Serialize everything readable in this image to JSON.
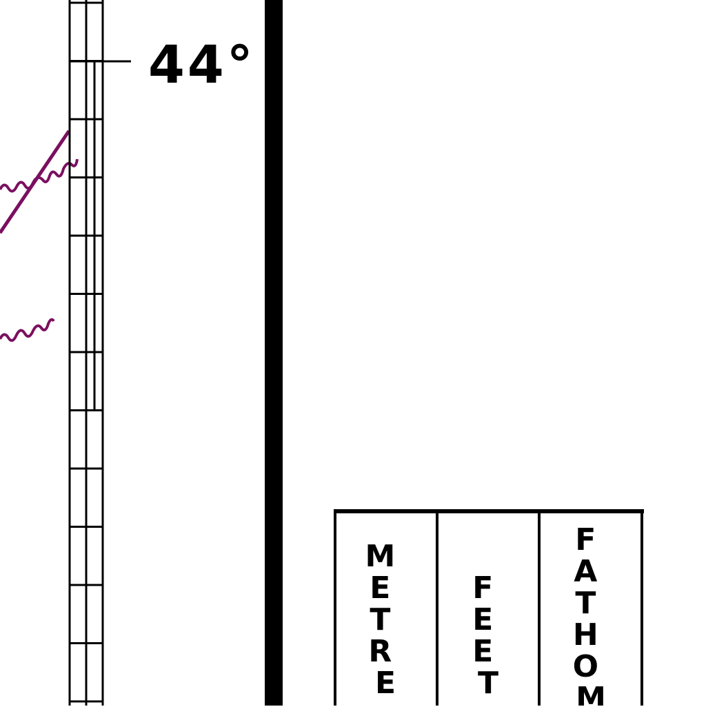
{
  "map": {
    "latitude_label": "44°",
    "colors": {
      "ink": "#000000",
      "paper": "#ffffff",
      "contour": "#7a1060"
    }
  },
  "units_table": {
    "columns": [
      {
        "label": "METRE"
      },
      {
        "label": "FEET"
      },
      {
        "label": "FATHOM"
      }
    ]
  }
}
